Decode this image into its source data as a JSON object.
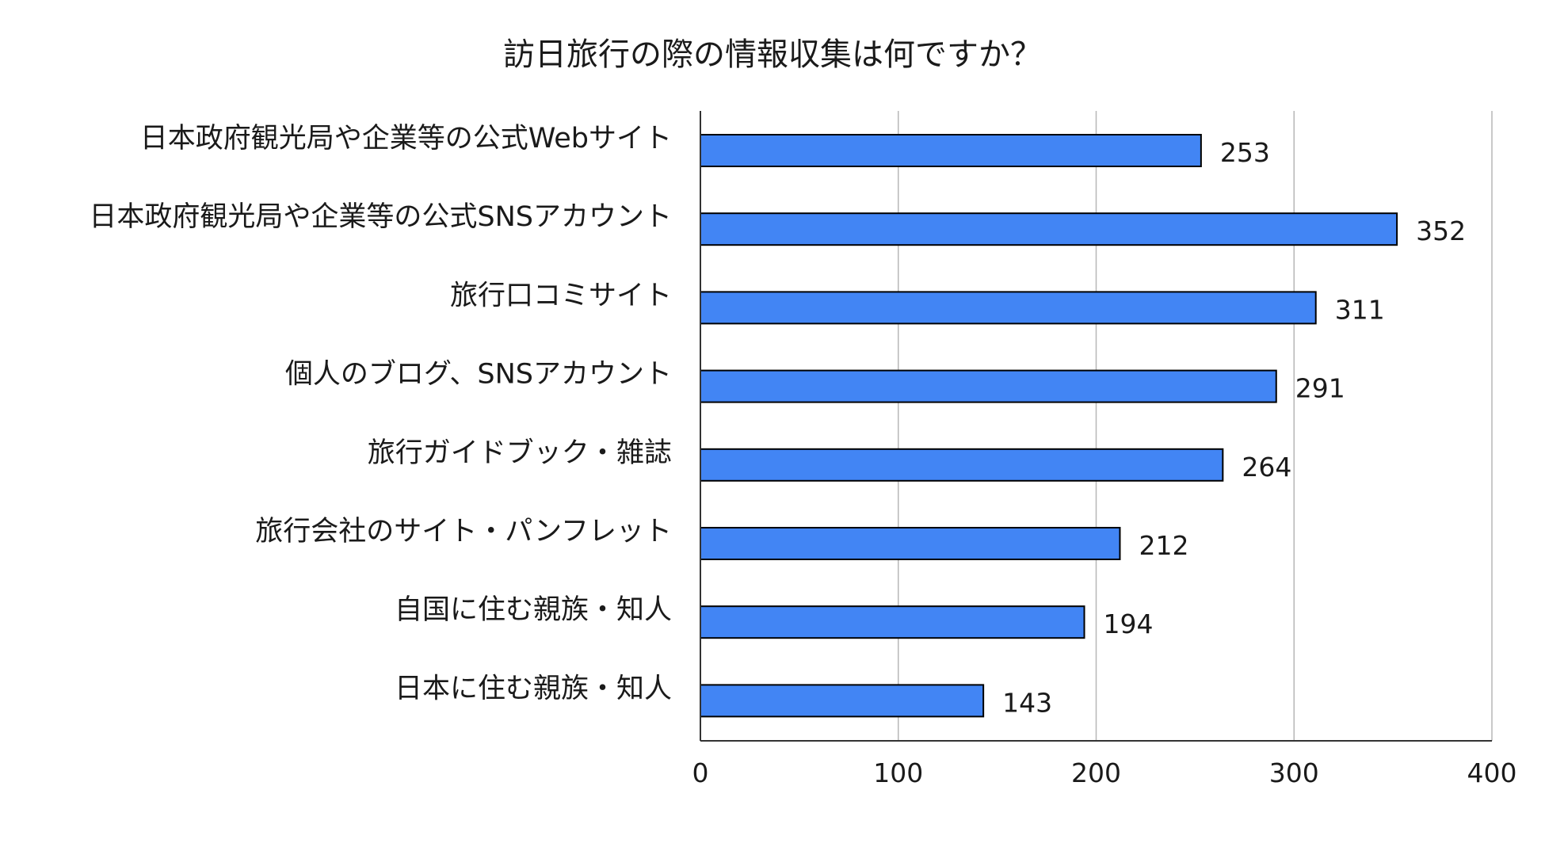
{
  "chart_data": {
    "type": "bar",
    "orientation": "horizontal",
    "title": "訪日旅行の際の情報収集は何ですか？",
    "xlabel": "",
    "ylabel": "",
    "categories": [
      "日本政府観光局や企業等の公式Webサイト",
      "日本政府観光局や企業等の公式SNSアカウント",
      "旅行口コミサイト",
      "個人のブログ、SNSアカウント",
      "旅行ガイドブック・雑誌",
      "旅行会社のサイト・パンフレット",
      "自国に住む親族・知人",
      "日本に住む親族・知人"
    ],
    "values": [
      253,
      352,
      311,
      291,
      264,
      212,
      194,
      143
    ],
    "xlim": [
      0,
      400
    ],
    "ticks": [
      0,
      100,
      200,
      300,
      400
    ],
    "grid": true,
    "legend": "none",
    "data_labels": true,
    "colors": {
      "bar_fill": "#4285F4",
      "bar_stroke": "#000000",
      "grid": "#b7b7b7",
      "axis": "#333333",
      "text": "#1a1a1a"
    }
  }
}
